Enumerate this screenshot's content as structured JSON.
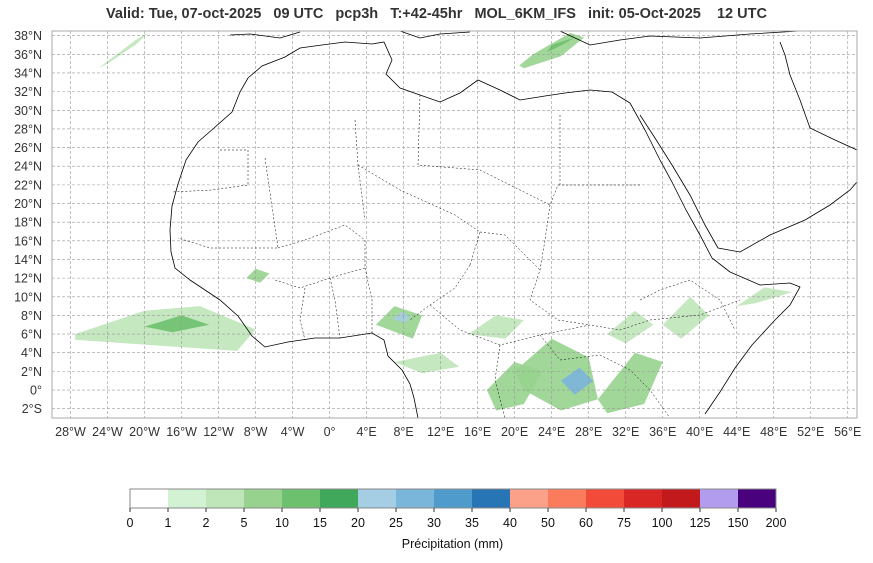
{
  "title": "Valid: Tue, 07-oct-2025   09 UTC   pcp3h   T:+42-45hr   MOL_6KM_IFS   init: 05-Oct-2025    12 UTC",
  "map": {
    "lon_range": [
      -30,
      57
    ],
    "lat_range": [
      -3,
      38.5
    ],
    "lon_ticks": [
      "28°W",
      "24°W",
      "20°W",
      "16°W",
      "12°W",
      "8°W",
      "4°W",
      "0°",
      "4°E",
      "8°E",
      "12°E",
      "16°E",
      "20°E",
      "24°E",
      "28°E",
      "32°E",
      "36°E",
      "40°E",
      "44°E",
      "48°E",
      "52°E",
      "56°E"
    ],
    "lat_ticks": [
      "2°S",
      "0°",
      "2°N",
      "4°N",
      "6°N",
      "8°N",
      "10°N",
      "12°N",
      "14°N",
      "16°N",
      "18°N",
      "20°N",
      "22°N",
      "24°N",
      "26°N",
      "28°N",
      "30°N",
      "32°N",
      "34°N",
      "36°N",
      "38°N"
    ],
    "grid": true,
    "coastline_color": "#000000",
    "border_style": "dashed"
  },
  "colorbar": {
    "label": "Précipitation (mm)",
    "ticks": [
      "0",
      "1",
      "2",
      "5",
      "10",
      "15",
      "20",
      "25",
      "30",
      "35",
      "40",
      "50",
      "60",
      "75",
      "100",
      "125",
      "150",
      "200"
    ],
    "colors": [
      "#ffffff",
      "#d3f2d3",
      "#bfe6b9",
      "#97d38e",
      "#6dc06e",
      "#3fa85a",
      "#a5cde3",
      "#7ab5da",
      "#4f9bcc",
      "#2775b4",
      "#fca189",
      "#fb7c5c",
      "#f24b3a",
      "#d92725",
      "#c2191c",
      "#b19cee",
      "#4a017e"
    ]
  },
  "precip_areas": [
    {
      "name": "western-sahara-north",
      "level": 2,
      "points": [
        [
          -25,
          34.5
        ],
        [
          -21,
          37.5
        ],
        [
          -19.5,
          38.4
        ],
        [
          -21,
          37
        ],
        [
          -24,
          35
        ]
      ]
    },
    {
      "name": "mediterranean-east",
      "level": 3,
      "points": [
        [
          21,
          34.5
        ],
        [
          25,
          35.8
        ],
        [
          27.5,
          37.8
        ],
        [
          26,
          38.3
        ],
        [
          22,
          36
        ],
        [
          20.5,
          34.8
        ]
      ]
    },
    {
      "name": "mediterranean-east-core",
      "level": 4,
      "points": [
        [
          23.5,
          36.2
        ],
        [
          25.5,
          37.2
        ],
        [
          26.5,
          37.8
        ],
        [
          24,
          37
        ]
      ]
    },
    {
      "name": "atlantic-itcz",
      "level": 2,
      "points": [
        [
          -27.5,
          6
        ],
        [
          -20,
          8.5
        ],
        [
          -14,
          9
        ],
        [
          -8,
          6.5
        ],
        [
          -10,
          4.2
        ],
        [
          -19,
          4.8
        ],
        [
          -27.5,
          5.4
        ]
      ]
    },
    {
      "name": "atlantic-itcz-core",
      "level": 4,
      "points": [
        [
          -20,
          6.8
        ],
        [
          -16,
          8
        ],
        [
          -13,
          7
        ],
        [
          -17,
          6.2
        ]
      ]
    },
    {
      "name": "mali-cell",
      "level": 3,
      "points": [
        [
          -9,
          12
        ],
        [
          -8,
          13
        ],
        [
          -6.5,
          12.5
        ],
        [
          -7.5,
          11.5
        ]
      ]
    },
    {
      "name": "nigeria-cell",
      "level": 3,
      "points": [
        [
          5,
          7
        ],
        [
          7,
          9
        ],
        [
          10,
          8
        ],
        [
          9,
          5.5
        ]
      ]
    },
    {
      "name": "nigeria-cell-core",
      "level": 6,
      "points": [
        [
          6.8,
          7.6
        ],
        [
          7.8,
          8.4
        ],
        [
          8.7,
          7.9
        ],
        [
          8.2,
          7.2
        ]
      ]
    },
    {
      "name": "cameroon-south",
      "level": 2,
      "points": [
        [
          7,
          3
        ],
        [
          12,
          4
        ],
        [
          14,
          2.5
        ],
        [
          10,
          1.8
        ]
      ]
    },
    {
      "name": "congo-west",
      "level": 3,
      "points": [
        [
          17,
          0
        ],
        [
          20,
          3
        ],
        [
          23,
          2
        ],
        [
          21,
          -1.5
        ],
        [
          18,
          -2.2
        ]
      ]
    },
    {
      "name": "congo-east",
      "level": 3,
      "points": [
        [
          20,
          2
        ],
        [
          24,
          5.5
        ],
        [
          28,
          3.5
        ],
        [
          29,
          -1
        ],
        [
          25,
          -2.2
        ],
        [
          21,
          0
        ]
      ]
    },
    {
      "name": "congo-core",
      "level": 7,
      "points": [
        [
          25,
          1
        ],
        [
          27,
          2.4
        ],
        [
          28.5,
          1
        ],
        [
          26.5,
          -0.5
        ]
      ]
    },
    {
      "name": "uganda-kenya",
      "level": 3,
      "points": [
        [
          29,
          -1
        ],
        [
          33,
          4
        ],
        [
          36,
          3
        ],
        [
          34,
          -1.5
        ],
        [
          30,
          -2.5
        ]
      ]
    },
    {
      "name": "ethiopia-highlands",
      "level": 2,
      "points": [
        [
          36,
          7
        ],
        [
          39,
          10
        ],
        [
          41,
          8
        ],
        [
          38,
          5.5
        ]
      ]
    },
    {
      "name": "somalia-north",
      "level": 2,
      "points": [
        [
          44,
          9
        ],
        [
          47,
          11
        ],
        [
          50,
          10.5
        ],
        [
          46,
          9.3
        ]
      ]
    },
    {
      "name": "sudan-south",
      "level": 2,
      "points": [
        [
          30,
          6
        ],
        [
          33,
          8.5
        ],
        [
          35,
          7
        ],
        [
          32,
          5
        ]
      ]
    },
    {
      "name": "central-africa",
      "level": 2,
      "points": [
        [
          15,
          6
        ],
        [
          18,
          8
        ],
        [
          21,
          7.5
        ],
        [
          19,
          5.5
        ]
      ]
    }
  ]
}
